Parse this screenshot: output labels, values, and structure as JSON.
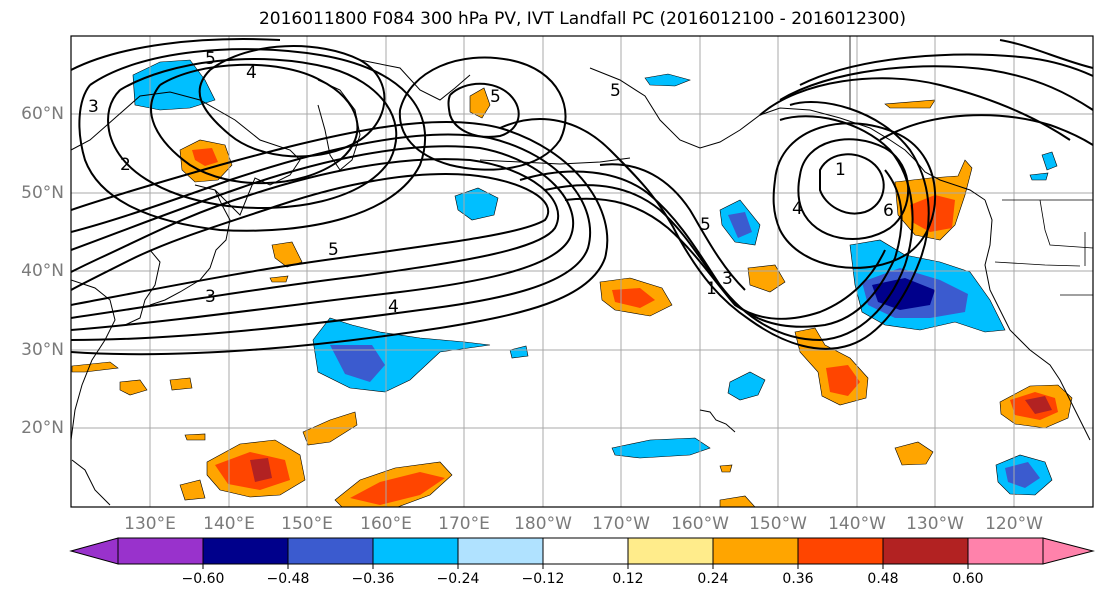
{
  "title": "2016011800 F084 300 hPa PV, IVT Landfall PC (2016012100 - 2016012300)",
  "latitude_labels": [
    "60°N",
    "50°N",
    "40°N",
    "30°N",
    "20°N"
  ],
  "longitude_labels": [
    "130°E",
    "140°E",
    "150°E",
    "160°E",
    "170°E",
    "180°W",
    "170°W",
    "160°W",
    "150°W",
    "140°W",
    "130°W",
    "120°W"
  ],
  "contour_labels": [
    "5",
    "4",
    "3",
    "2",
    "5",
    "1",
    "6",
    "5",
    "5",
    "4",
    "3",
    "4",
    "5",
    "3",
    "1"
  ],
  "colorbar": {
    "tick_labels": [
      "−0.60",
      "−0.48",
      "−0.36",
      "−0.24",
      "−0.12",
      "0.12",
      "0.24",
      "0.36",
      "0.48",
      "0.60"
    ],
    "colors": [
      "#9932cc",
      "#00008b",
      "#3b5bcf",
      "#00bfff",
      "#b0e2ff",
      "#ffffff",
      "#ffec8b",
      "#ffa500",
      "#ff4500",
      "#b22222",
      "#ff82ab"
    ]
  }
}
